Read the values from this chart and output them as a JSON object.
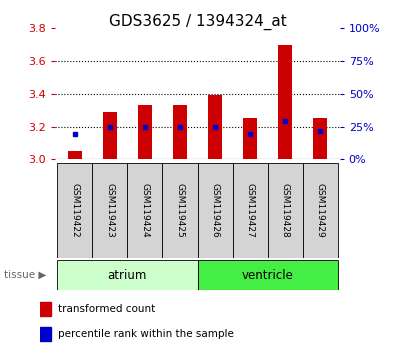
{
  "title": "GDS3625 / 1394324_at",
  "samples": [
    "GSM119422",
    "GSM119423",
    "GSM119424",
    "GSM119425",
    "GSM119426",
    "GSM119427",
    "GSM119428",
    "GSM119429"
  ],
  "transformed_counts": [
    3.05,
    3.29,
    3.33,
    3.33,
    3.39,
    3.25,
    3.7,
    3.25
  ],
  "blue_y_fracs": [
    0.193,
    0.25,
    0.25,
    0.247,
    0.247,
    0.193,
    0.29,
    0.218
  ],
  "groups": [
    {
      "label": "atrium",
      "count": 4,
      "color": "#ccffcc"
    },
    {
      "label": "ventricle",
      "count": 4,
      "color": "#44ee44"
    }
  ],
  "ylim": [
    3.0,
    3.8
  ],
  "ylim_right": [
    0,
    100
  ],
  "yticks_left": [
    3.0,
    3.2,
    3.4,
    3.6,
    3.8
  ],
  "yticks_right": [
    0,
    25,
    50,
    75,
    100
  ],
  "bar_color_red": "#cc0000",
  "bar_color_blue": "#0000cc",
  "bar_base": 3.0,
  "left_tick_color": "#cc0000",
  "right_tick_color": "#0000cc",
  "title_fontsize": 11,
  "tick_fontsize": 8,
  "legend_items": [
    "transformed count",
    "percentile rank within the sample"
  ],
  "bar_width": 0.4,
  "grid_yticks": [
    3.2,
    3.4,
    3.6
  ]
}
